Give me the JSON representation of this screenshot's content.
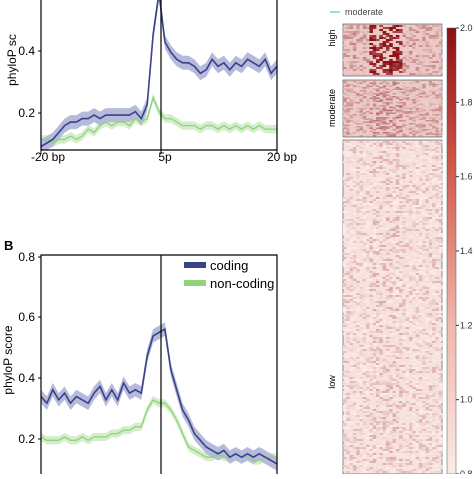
{
  "colors": {
    "coding": "#3a4288",
    "coding_band": "#b6bbdc",
    "noncoding": "#8fd37a",
    "noncoding_band": "#d4eecb",
    "heat_high": "#8b0f14",
    "heat_low": "#fbeae6",
    "axis": "#000000"
  },
  "chart_data": [
    {
      "type": "line",
      "panel": "A",
      "panel_label": "",
      "ylabel": "phyloP sc",
      "xlabel": "",
      "x_ticks": [
        "-20 bp",
        "5p",
        "20 bp"
      ],
      "y_ticks": [
        "0.2",
        "0.4"
      ],
      "ylim": [
        0.17,
        0.6
      ],
      "x_range": [
        -20,
        20
      ],
      "marker_line_x": 0,
      "series": [
        {
          "key": "coding",
          "x": [
            -20,
            -19,
            -18,
            -17,
            -16,
            -15,
            -14,
            -13,
            -12,
            -11,
            -10,
            -9,
            -8,
            -7,
            -6,
            -5,
            -4,
            -3,
            -2,
            -1,
            0,
            1,
            2,
            3,
            4,
            5,
            6,
            7,
            8,
            9,
            10,
            11,
            12,
            13,
            14,
            15,
            16,
            17,
            18,
            19,
            20
          ],
          "values": [
            0.18,
            0.19,
            0.2,
            0.22,
            0.24,
            0.25,
            0.25,
            0.26,
            0.26,
            0.27,
            0.26,
            0.27,
            0.27,
            0.27,
            0.27,
            0.27,
            0.28,
            0.26,
            0.3,
            0.5,
            0.62,
            0.48,
            0.45,
            0.43,
            0.42,
            0.42,
            0.41,
            0.39,
            0.4,
            0.43,
            0.41,
            0.42,
            0.4,
            0.42,
            0.41,
            0.43,
            0.42,
            0.41,
            0.43,
            0.39,
            0.41
          ]
        },
        {
          "key": "non-coding",
          "x": [
            -20,
            -19,
            -18,
            -17,
            -16,
            -15,
            -14,
            -13,
            -12,
            -11,
            -10,
            -9,
            -8,
            -7,
            -6,
            -5,
            -4,
            -3,
            -2,
            -1,
            0,
            1,
            2,
            3,
            4,
            5,
            6,
            7,
            8,
            9,
            10,
            11,
            12,
            13,
            14,
            15,
            16,
            17,
            18,
            19,
            20
          ],
          "values": [
            0.2,
            0.2,
            0.19,
            0.2,
            0.2,
            0.21,
            0.2,
            0.21,
            0.23,
            0.22,
            0.24,
            0.25,
            0.24,
            0.25,
            0.25,
            0.24,
            0.26,
            0.25,
            0.26,
            0.32,
            0.28,
            0.26,
            0.26,
            0.25,
            0.24,
            0.24,
            0.24,
            0.23,
            0.24,
            0.24,
            0.23,
            0.24,
            0.23,
            0.24,
            0.23,
            0.24,
            0.23,
            0.24,
            0.23,
            0.23,
            0.23
          ]
        }
      ]
    },
    {
      "type": "line",
      "panel": "B",
      "panel_label": "B",
      "ylabel": "phyloP score",
      "xlabel": "",
      "y_ticks": [
        "0.2",
        "0.4",
        "0.6",
        "0.8"
      ],
      "ylim": [
        0.15,
        0.8
      ],
      "x_range": [
        -20,
        20
      ],
      "marker_line_x": 0,
      "legend": [
        "coding",
        "non-coding"
      ],
      "legend_position": "top-right",
      "series": [
        {
          "key": "coding",
          "x": [
            -20,
            -19,
            -18,
            -17,
            -16,
            -15,
            -14,
            -13,
            -12,
            -11,
            -10,
            -9,
            -8,
            -7,
            -6,
            -5,
            -4,
            -3,
            -2,
            -1,
            0,
            1,
            2,
            3,
            4,
            5,
            6,
            7,
            8,
            9,
            10,
            11,
            12,
            13,
            14,
            15,
            16,
            17,
            18,
            19,
            20
          ],
          "values": [
            0.38,
            0.36,
            0.4,
            0.37,
            0.39,
            0.36,
            0.38,
            0.37,
            0.36,
            0.39,
            0.41,
            0.37,
            0.4,
            0.37,
            0.42,
            0.39,
            0.4,
            0.39,
            0.5,
            0.56,
            0.57,
            0.58,
            0.46,
            0.4,
            0.34,
            0.31,
            0.27,
            0.25,
            0.23,
            0.22,
            0.21,
            0.22,
            0.2,
            0.21,
            0.2,
            0.21,
            0.2,
            0.21,
            0.2,
            0.19,
            0.18
          ]
        },
        {
          "key": "non-coding",
          "x": [
            -20,
            -19,
            -18,
            -17,
            -16,
            -15,
            -14,
            -13,
            -12,
            -11,
            -10,
            -9,
            -8,
            -7,
            -6,
            -5,
            -4,
            -3,
            -2,
            -1,
            0,
            1,
            2,
            3,
            4,
            5,
            6,
            7,
            8,
            9,
            10,
            11,
            12,
            13,
            14,
            15,
            16,
            17,
            18,
            19,
            20
          ],
          "values": [
            0.26,
            0.25,
            0.25,
            0.25,
            0.26,
            0.25,
            0.25,
            0.26,
            0.25,
            0.26,
            0.26,
            0.26,
            0.27,
            0.27,
            0.28,
            0.28,
            0.29,
            0.29,
            0.34,
            0.37,
            0.36,
            0.36,
            0.34,
            0.31,
            0.27,
            0.23,
            0.22,
            0.21,
            0.2,
            0.2,
            0.21,
            0.2,
            0.2,
            0.21,
            0.2,
            0.2,
            0.19,
            0.19,
            0.2,
            0.2,
            0.2
          ]
        }
      ]
    },
    {
      "type": "heatmap",
      "panel": "C",
      "legend": [
        "moderate"
      ],
      "groups": [
        "high",
        "moderate",
        "low"
      ],
      "colorbar_ticks": [
        "0.8",
        "1.0",
        "1.2",
        "1.4",
        "1.6",
        "1.8",
        "2.0"
      ],
      "colorbar_range": [
        0.8,
        2.0
      ]
    }
  ]
}
